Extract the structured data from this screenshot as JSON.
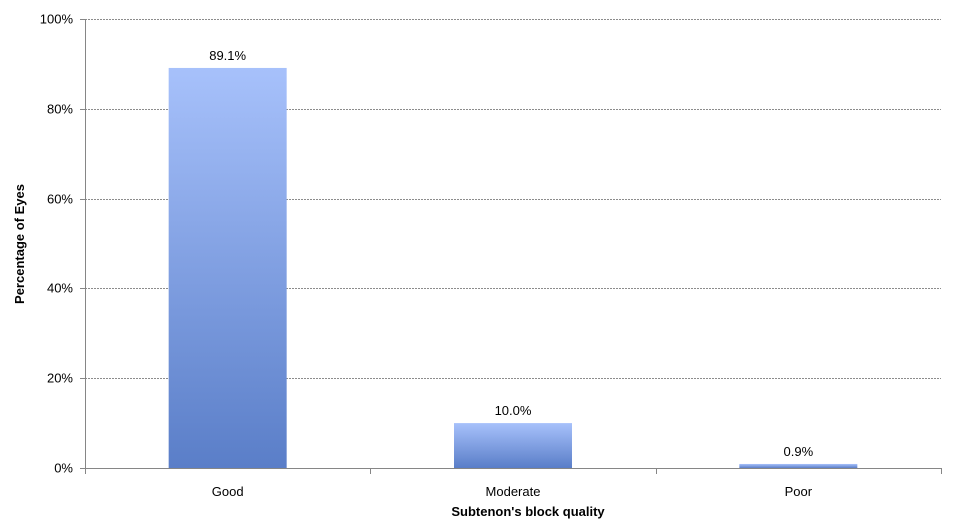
{
  "chart_data": {
    "type": "bar",
    "title": "",
    "xlabel": "Subtenon's block quality",
    "ylabel": "Percentage of Eyes",
    "categories": [
      "Good",
      "Moderate",
      "Poor"
    ],
    "values": [
      89.1,
      10.0,
      0.9
    ],
    "data_labels": [
      "89.1%",
      "10.0%",
      "0.9%"
    ],
    "ylim": [
      0,
      100
    ],
    "yticks": [
      0,
      20,
      40,
      60,
      80,
      100
    ],
    "ytick_labels": [
      "0%",
      "20%",
      "40%",
      "60%",
      "80%",
      "100%"
    ],
    "grid": true,
    "legend": "none",
    "colors": {
      "bar_top": "#a7c1fb",
      "bar_bottom": "#5a7ec8",
      "grid": "#8c8c8c",
      "axis": "#868686"
    }
  }
}
